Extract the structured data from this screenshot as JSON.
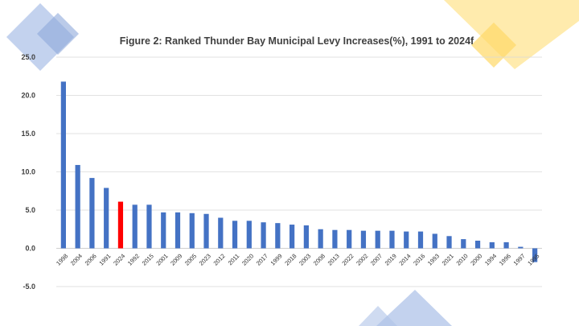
{
  "chart_data": {
    "type": "bar",
    "title": "Figure 2: Ranked Thunder Bay Municipal Levy Increases(%), 1991 to 2024f",
    "xlabel": "",
    "ylabel": "",
    "ylim": [
      -5.0,
      25.0
    ],
    "yticks": [
      "25.0",
      "20.0",
      "15.0",
      "10.0",
      "5.0",
      "0.0",
      "-5.0"
    ],
    "grid": true,
    "legend": "none",
    "categories": [
      "1998",
      "2004",
      "2006",
      "1991",
      "2024",
      "1992",
      "2015",
      "2001",
      "2009",
      "2005",
      "2023",
      "2012",
      "2011",
      "2020",
      "2017",
      "1999",
      "2018",
      "2003",
      "2008",
      "2013",
      "2022",
      "2002",
      "2007",
      "2019",
      "2014",
      "2016",
      "1993",
      "2021",
      "2010",
      "2000",
      "1994",
      "1996",
      "1997",
      "1995"
    ],
    "series": [
      {
        "values": [
          21.8,
          10.9,
          9.2,
          7.9,
          6.1,
          5.7,
          5.7,
          4.7,
          4.7,
          4.6,
          4.5,
          4.0,
          3.6,
          3.6,
          3.4,
          3.3,
          3.1,
          3.0,
          2.5,
          2.4,
          2.4,
          2.3,
          2.3,
          2.3,
          2.2,
          2.2,
          1.9,
          1.6,
          1.2,
          1.0,
          0.8,
          0.8,
          0.2,
          -1.8
        ]
      }
    ],
    "colors": {
      "bar": "#4472C4",
      "highlight": "#FF0000",
      "highlight_category": "2024",
      "grid": "#D9D9D9",
      "axis": "#BFBFBF"
    }
  },
  "decor": {
    "accent_blue": "#8EA9DB",
    "accent_yellow": "#FFD966"
  }
}
